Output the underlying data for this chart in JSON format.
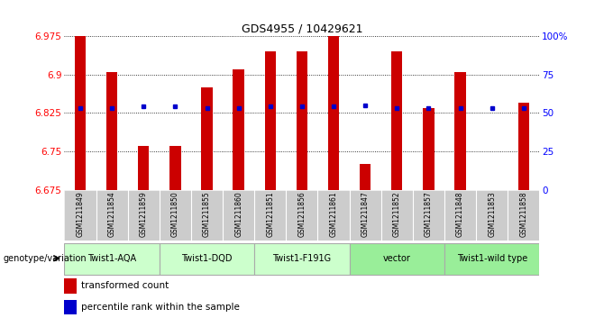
{
  "title": "GDS4955 / 10429621",
  "samples": [
    "GSM1211849",
    "GSM1211854",
    "GSM1211859",
    "GSM1211850",
    "GSM1211855",
    "GSM1211860",
    "GSM1211851",
    "GSM1211856",
    "GSM1211861",
    "GSM1211847",
    "GSM1211852",
    "GSM1211857",
    "GSM1211848",
    "GSM1211853",
    "GSM1211858"
  ],
  "transformed_count": [
    6.975,
    6.905,
    6.76,
    6.76,
    6.875,
    6.91,
    6.945,
    6.945,
    6.975,
    6.725,
    6.945,
    6.835,
    6.905,
    6.665,
    6.845
  ],
  "percentile_rank": [
    53,
    53,
    54,
    54,
    53,
    53,
    54,
    54,
    54,
    55,
    53,
    53,
    53,
    53,
    53
  ],
  "y_min": 6.675,
  "y_max": 6.975,
  "y_ticks": [
    6.675,
    6.75,
    6.825,
    6.9,
    6.975
  ],
  "y_tick_labels": [
    "6.675",
    "6.75",
    "6.825",
    "6.9",
    "6.975"
  ],
  "right_y_ticks": [
    0,
    25,
    50,
    75,
    100
  ],
  "right_y_tick_labels": [
    "0",
    "25",
    "50",
    "75",
    "100%"
  ],
  "groups": [
    {
      "label": "Twist1-AQA",
      "start": 0,
      "end": 2,
      "color": "#ccffcc"
    },
    {
      "label": "Twist1-DQD",
      "start": 3,
      "end": 5,
      "color": "#ccffcc"
    },
    {
      "label": "Twist1-F191G",
      "start": 6,
      "end": 8,
      "color": "#ccffcc"
    },
    {
      "label": "vector",
      "start": 9,
      "end": 11,
      "color": "#99ee99"
    },
    {
      "label": "Twist1-wild type",
      "start": 12,
      "end": 14,
      "color": "#99ee99"
    }
  ],
  "bar_color": "#cc0000",
  "dot_color": "#0000cc",
  "bar_width": 0.35,
  "grid_color": "#888888",
  "bg_color": "#ffffff",
  "sample_bg": "#cccccc",
  "legend_red": "transformed count",
  "legend_blue": "percentile rank within the sample",
  "label_genotype": "genotype/variation"
}
